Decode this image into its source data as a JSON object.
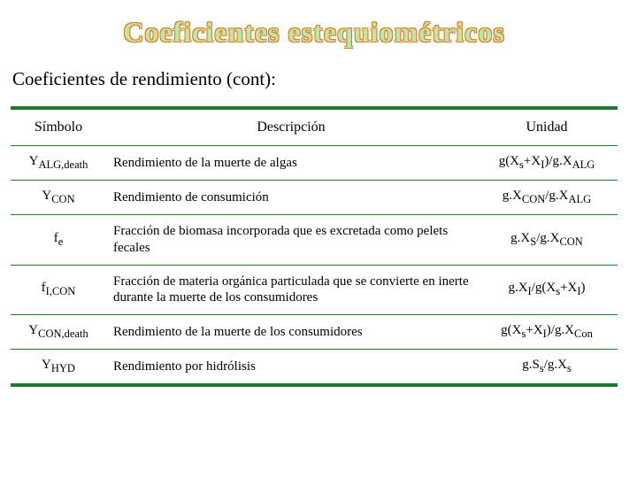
{
  "title": "Coeficientes estequiométricos",
  "subtitle": "Coeficientes de rendimiento (cont):",
  "table": {
    "headers": {
      "symbol": "Símbolo",
      "description": "Descripción",
      "unit": "Unidad"
    },
    "rows": [
      {
        "symbol_html": "Y<sub>ALG,death</sub>",
        "description": "Rendimiento de la muerte de algas",
        "unit_html": "g(X<sub>s</sub>+X<sub>I</sub>)/g.X<sub>ALG</sub>"
      },
      {
        "symbol_html": "Y<sub>CON</sub>",
        "description": "Rendimiento de consumición",
        "unit_html": "g.X<sub>CON</sub>/g.X<sub>ALG</sub>"
      },
      {
        "symbol_html": "f<sub>e</sub>",
        "description": "Fracción de biomasa incorporada que es excretada como pelets fecales",
        "unit_html": "g.X<sub>S</sub>/g.X<sub>CON</sub>"
      },
      {
        "symbol_html": "f<sub>I,CON</sub>",
        "description": "Fracción de materia orgánica particulada que se convierte en inerte durante la muerte de los consumidores",
        "unit_html": "g.X<sub>I</sub>/g(X<sub>s</sub>+X<sub>I</sub>)"
      },
      {
        "symbol_html": "Y<sub>CON,death</sub>",
        "description": "Rendimiento de la muerte de los consumidores",
        "unit_html": "g(X<sub>s</sub>+X<sub>I</sub>)/g.X<sub>Con</sub>"
      },
      {
        "symbol_html": "Y<sub>HYD</sub>",
        "description": "Rendimiento por hidrólisis",
        "unit_html": "g.S<sub>s</sub>/g.X<sub>s</sub>"
      }
    ]
  },
  "style": {
    "title_fill": "#bfe6a8",
    "title_outline": "#e07a1a",
    "rule_color": "#1c7a2f",
    "background": "#ffffff",
    "body_font": "Times New Roman",
    "title_font": "Comic Sans MS"
  }
}
